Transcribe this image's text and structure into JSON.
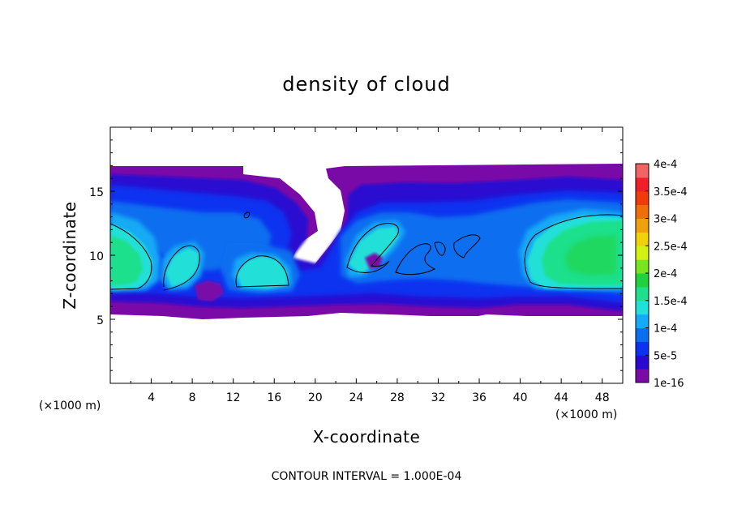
{
  "chart_data": {
    "type": "heatmap",
    "title": "density of cloud",
    "xlabel": "X-coordinate",
    "ylabel": "Z-coordinate",
    "x_unit_label": "(×1000 m)",
    "y_unit_label": "(×1000 m)",
    "footer": "CONTOUR INTERVAL = 1.000E-04",
    "xlim": [
      0,
      50
    ],
    "ylim": [
      0,
      20
    ],
    "x_ticks": [
      4,
      8,
      12,
      16,
      20,
      24,
      28,
      32,
      36,
      40,
      44,
      48
    ],
    "x_tick_labels": [
      "4",
      "8",
      "12",
      "16",
      "20",
      "24",
      "28",
      "32",
      "36",
      "40",
      "44",
      "48"
    ],
    "y_ticks": [
      5,
      10,
      15
    ],
    "y_tick_labels": [
      "5",
      "10",
      "15"
    ],
    "colorbar": {
      "min": 1e-16,
      "max": 0.0004,
      "labels": [
        "1e-16",
        "5e-5",
        "1e-4",
        "1.5e-4",
        "2e-4",
        "2.5e-4",
        "3e-4",
        "3.5e-4",
        "4e-4"
      ],
      "colors": [
        "#7a0aa8",
        "#2a0ad0",
        "#0a32f0",
        "#0a6ef0",
        "#14aaf5",
        "#20e0d8",
        "#1ee08c",
        "#20d23c",
        "#78e61e",
        "#d2f014",
        "#f0d20a",
        "#f0a00a",
        "#f06e0a",
        "#f03c0a",
        "#f01e28",
        "#f06464"
      ]
    },
    "cloud_layer": {
      "base_z": 5.4,
      "top_z": 16.9
    },
    "contour_levels": [
      0.0001
    ],
    "blobs": [
      {
        "label": "left core",
        "x": 1.5,
        "z": 10.0,
        "peak": 0.00019
      },
      {
        "label": "cell near x=7",
        "x": 7.0,
        "z": 9.3,
        "peak": 0.00016
      },
      {
        "label": "cell near x=15",
        "x": 14.8,
        "z": 8.8,
        "peak": 0.00016
      },
      {
        "label": "cell near x=25",
        "x": 25.0,
        "z": 10.3,
        "peak": 0.00015
      },
      {
        "label": "cell near x=30",
        "x": 30.5,
        "z": 9.6,
        "peak": 0.00011
      },
      {
        "label": "cell near x=34",
        "x": 34.0,
        "z": 10.2,
        "peak": 0.00011
      },
      {
        "label": "right core",
        "x": 47.0,
        "z": 10.3,
        "peak": 0.000195
      }
    ]
  }
}
